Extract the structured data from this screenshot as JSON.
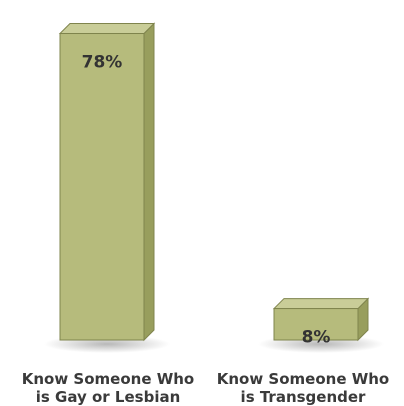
{
  "chart_data": {
    "type": "bar",
    "categories": [
      [
        "Know Someone Who",
        "is Gay or Lesbian"
      ],
      [
        "Know Someone Who",
        "is Transgender"
      ]
    ],
    "values": [
      78,
      8
    ],
    "data_labels": [
      "78%",
      "8%"
    ],
    "title": "",
    "xlabel": "",
    "ylabel": "",
    "ylim": [
      0,
      85
    ],
    "grid": false,
    "legend": "none",
    "colors": {
      "front": "#b6bb7c",
      "side": "#989e5d",
      "top": "#c9cd98",
      "edge": "#7f844d",
      "label": "#333333"
    }
  }
}
